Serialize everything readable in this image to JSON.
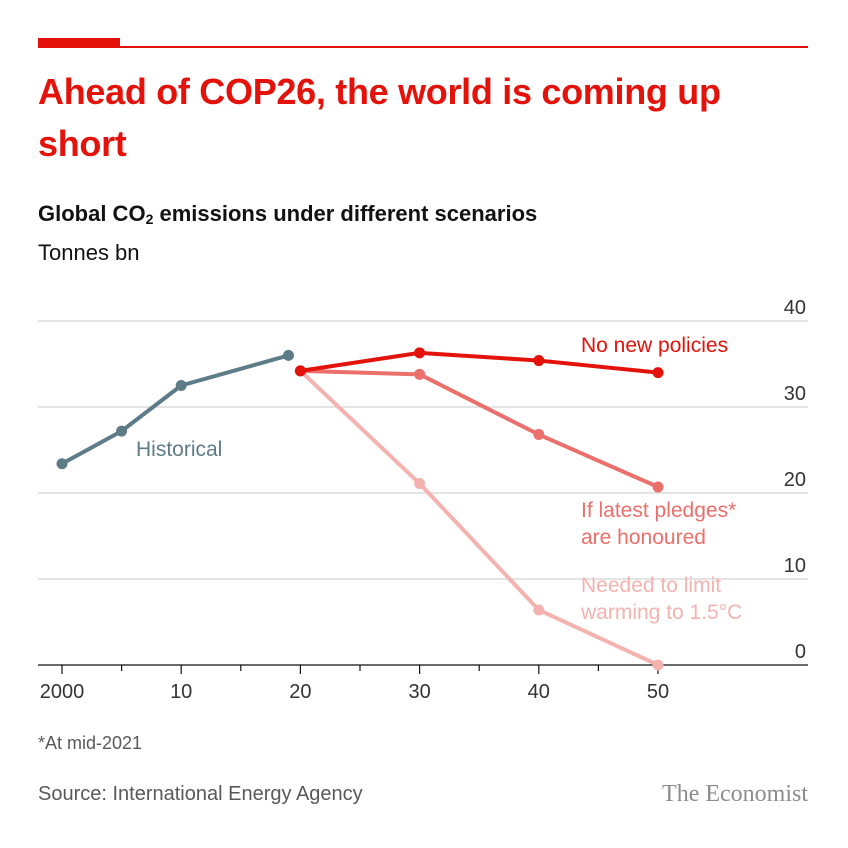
{
  "header": {
    "title": "Ahead of COP26, the world is coming up short",
    "subtitle_pre": "Global CO",
    "subtitle_sub": "2",
    "subtitle_post": " emissions under different scenarios",
    "unit": "Tonnes bn"
  },
  "chart_data": {
    "type": "line",
    "ylabel": "Tonnes bn",
    "ylim": [
      0,
      40
    ],
    "xlim": [
      2000,
      2050
    ],
    "x_ticks": [
      {
        "value": 2000,
        "label": "2000"
      },
      {
        "value": 2010,
        "label": "10"
      },
      {
        "value": 2020,
        "label": "20"
      },
      {
        "value": 2030,
        "label": "30"
      },
      {
        "value": 2040,
        "label": "40"
      },
      {
        "value": 2050,
        "label": "50"
      }
    ],
    "y_ticks": [
      0,
      10,
      20,
      30,
      40
    ],
    "grid": true,
    "series": [
      {
        "name": "Historical",
        "color": "#5e7c88",
        "points": [
          [
            2000,
            23.4
          ],
          [
            2005,
            27.2
          ],
          [
            2010,
            32.5
          ],
          [
            2019,
            36.0
          ]
        ]
      },
      {
        "name": "No new policies",
        "color": "#e3120b",
        "points": [
          [
            2020,
            34.2
          ],
          [
            2030,
            36.3
          ],
          [
            2040,
            35.4
          ],
          [
            2050,
            34.0
          ]
        ]
      },
      {
        "name": "If latest pledges* are honoured",
        "color": "#eb6f6b",
        "points": [
          [
            2020,
            34.2
          ],
          [
            2030,
            33.8
          ],
          [
            2040,
            26.8
          ],
          [
            2050,
            20.7
          ]
        ]
      },
      {
        "name": "Needed to limit warming to 1.5°C",
        "color": "#f5b3b0",
        "points": [
          [
            2020,
            34.2
          ],
          [
            2030,
            21.1
          ],
          [
            2040,
            6.4
          ],
          [
            2050,
            0.0
          ]
        ]
      }
    ],
    "labels": {
      "historical": "Historical",
      "no_new_policies": "No new policies",
      "pledges_line1": "If latest pledges*",
      "pledges_line2": "are honoured",
      "limit_line1": "Needed to limit",
      "limit_line2": "warming to 1.5°C"
    }
  },
  "footer": {
    "footnote": "*At mid-2021",
    "source": "Source: International Energy Agency",
    "brand": "The Economist"
  }
}
